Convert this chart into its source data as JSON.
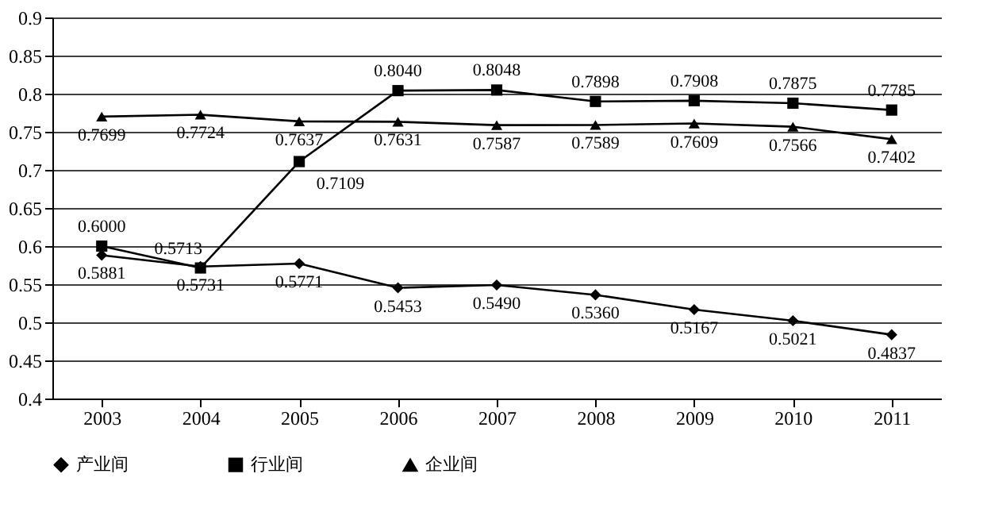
{
  "chart_data": {
    "type": "line",
    "categories": [
      "2003",
      "2004",
      "2005",
      "2006",
      "2007",
      "2008",
      "2009",
      "2010",
      "2011"
    ],
    "series": [
      {
        "name": "产业间",
        "color": "#000000",
        "marker": "diamond",
        "values": [
          0.5881,
          0.5731,
          0.5771,
          0.5453,
          0.549,
          0.536,
          0.5167,
          0.5021,
          0.4837
        ],
        "value_labels": [
          "0.5881",
          "0.5731",
          "0.5771",
          "0.5453",
          "0.5490",
          "0.5360",
          "0.5167",
          "0.5021",
          "0.4837"
        ]
      },
      {
        "name": "行业间",
        "color": "#000000",
        "marker": "square",
        "values": [
          0.6,
          0.5713,
          0.7109,
          0.804,
          0.8048,
          0.7898,
          0.7908,
          0.7875,
          0.7785
        ],
        "value_labels": [
          "0.6000",
          "0.5713",
          "0.7109",
          "0.8040",
          "0.8048",
          "0.7898",
          "0.7908",
          "0.7875",
          "0.7785"
        ]
      },
      {
        "name": "企业间",
        "color": "#000000",
        "marker": "triangle",
        "values": [
          0.7699,
          0.7724,
          0.7637,
          0.7631,
          0.7587,
          0.7589,
          0.7609,
          0.7566,
          0.7402
        ],
        "value_labels": [
          "0.7699",
          "0.7724",
          "0.7637",
          "0.7631",
          "0.7587",
          "0.7589",
          "0.7609",
          "0.7566",
          "0.7402"
        ]
      }
    ],
    "ylim": [
      0.4,
      0.9
    ],
    "yticks": [
      0.4,
      0.45,
      0.5,
      0.55,
      0.6,
      0.65,
      0.7,
      0.75,
      0.8,
      0.85,
      0.9
    ],
    "grid": "y",
    "legend": "bottom",
    "line_style": "solid"
  }
}
